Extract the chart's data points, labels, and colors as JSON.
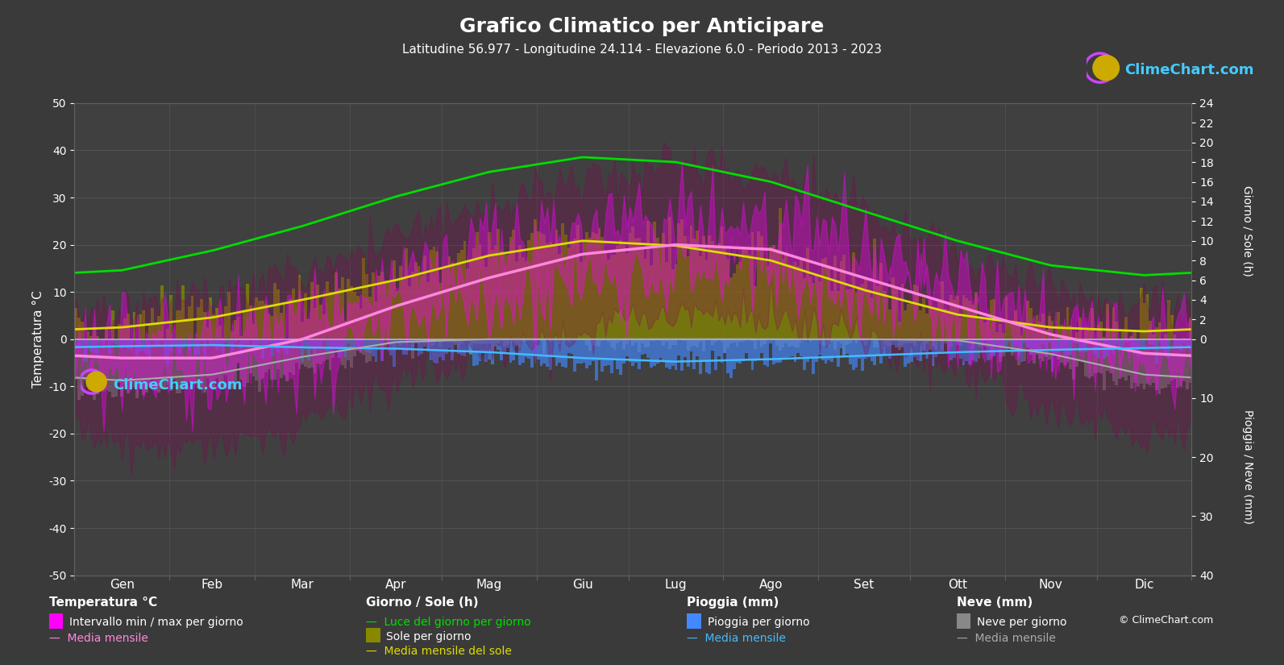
{
  "title": "Grafico Climatico per Anticipare",
  "subtitle": "Latitudine 56.977 - Longitudine 24.114 - Elevazione 6.0 - Periodo 2013 - 2023",
  "bg_color": "#3a3a3a",
  "plot_bg_color": "#404040",
  "grid_color": "#606060",
  "text_color": "#ffffff",
  "months": [
    "Gen",
    "Feb",
    "Mar",
    "Apr",
    "Mag",
    "Giu",
    "Lug",
    "Ago",
    "Set",
    "Ott",
    "Nov",
    "Dic"
  ],
  "temp_ylim": [
    -50,
    50
  ],
  "sun_max": 24,
  "precip_max": 40,
  "temp_min_daily": [
    -8,
    -9,
    -5,
    2,
    8,
    13,
    15,
    14,
    8,
    3,
    -2,
    -6
  ],
  "temp_max_daily": [
    0,
    1,
    5,
    12,
    19,
    23,
    26,
    25,
    18,
    11,
    4,
    1
  ],
  "temp_min_extreme": [
    -22,
    -24,
    -18,
    -8,
    -3,
    2,
    6,
    4,
    -1,
    -6,
    -15,
    -20
  ],
  "temp_max_extreme": [
    6,
    8,
    14,
    22,
    28,
    33,
    37,
    35,
    27,
    18,
    10,
    7
  ],
  "temp_mean_monthly": [
    -4,
    -4,
    0,
    7,
    13,
    18,
    20,
    19,
    13,
    7,
    1,
    -3
  ],
  "daylight_hours": [
    7.0,
    9.0,
    11.5,
    14.5,
    17.0,
    18.5,
    18.0,
    16.0,
    13.0,
    10.0,
    7.5,
    6.5
  ],
  "sunshine_hours_daily": [
    1.5,
    2.5,
    4.5,
    6.5,
    9.0,
    10.5,
    10.0,
    8.5,
    5.5,
    3.0,
    1.5,
    1.0
  ],
  "sunshine_mean": [
    1.2,
    2.2,
    4.0,
    6.0,
    8.5,
    10.0,
    9.5,
    8.0,
    5.0,
    2.5,
    1.2,
    0.8
  ],
  "rain_daily_mm": [
    1.5,
    1.2,
    1.8,
    2.0,
    2.8,
    4.0,
    4.5,
    4.0,
    3.5,
    2.8,
    2.2,
    2.0
  ],
  "rain_mean_monthly": [
    1.2,
    1.0,
    1.4,
    1.6,
    2.2,
    3.2,
    3.8,
    3.4,
    2.8,
    2.2,
    1.8,
    1.5
  ],
  "snow_daily_mm": [
    9,
    8,
    5,
    1,
    0,
    0,
    0,
    0,
    0,
    0.5,
    3.5,
    8
  ],
  "snow_mean_monthly": [
    7,
    6,
    3,
    0.5,
    0,
    0,
    0,
    0,
    0,
    0.2,
    2.5,
    6
  ],
  "temp_interval_color": "#ff00ff",
  "temp_interval_alpha": 0.35,
  "temp_mean_color": "#ff88dd",
  "daylight_color": "#00dd00",
  "sunshine_bar_color": "#888800",
  "sunshine_mean_color": "#dddd00",
  "rain_color": "#4488ff",
  "rain_mean_color": "#44bbff",
  "snow_color": "#888888",
  "snow_mean_color": "#aaaaaa",
  "zero_line_color": "#bbbbdd"
}
